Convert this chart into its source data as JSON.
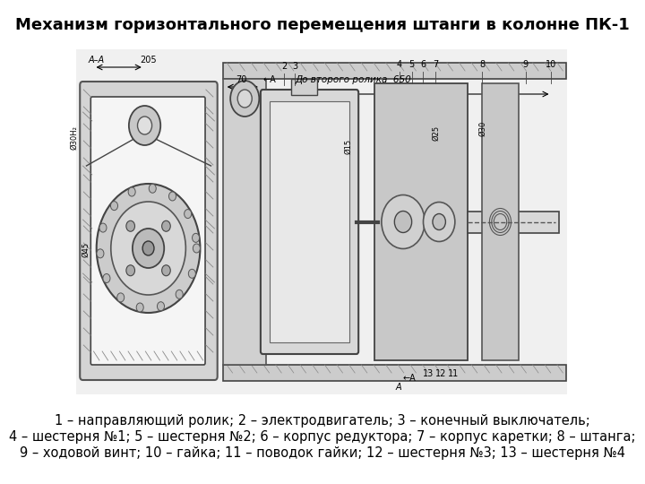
{
  "title": "Механизм горизонтального перемещения штанги в колонне ПК-1",
  "title_fontsize": 13,
  "title_fontweight": "bold",
  "caption_line1": "1 – направляющий ролик; 2 – электродвигатель; 3 – конечный выключатель;",
  "caption_line2": "4 – шестерня №1; 5 – шестерня №2; 6 – корпус редуктора; 7 – корпус каретки; 8 – штанга;",
  "caption_line3": "9 – ходовой винт; 10 – гайка; 11 – поводок гайки; 12 – шестерня №3; 13 – шестерня №4",
  "caption_fontsize": 10.5,
  "bg_color": "#ffffff",
  "drawing_bg": "#e8e8e8",
  "figsize": [
    7.2,
    5.4
  ],
  "dpi": 100
}
